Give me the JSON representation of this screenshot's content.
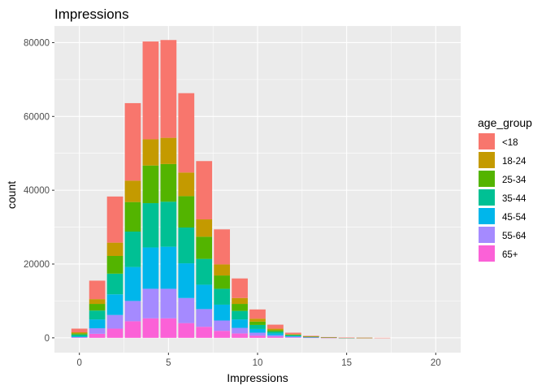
{
  "chart_data": {
    "type": "bar",
    "stacked": true,
    "title": "Impressions",
    "xlabel": "Impressions",
    "ylabel": "count",
    "xlim": [
      -1.4,
      21.4
    ],
    "ylim": [
      -4000,
      84500
    ],
    "x_ticks": [
      0,
      5,
      10,
      15,
      20
    ],
    "y_ticks": [
      0,
      20000,
      40000,
      60000,
      80000
    ],
    "x_tick_labels": [
      "0",
      "5",
      "10",
      "15",
      "20"
    ],
    "y_tick_labels": [
      "0",
      "20000",
      "40000",
      "60000",
      "80000"
    ],
    "grid": true,
    "legend": {
      "title": "age_group",
      "position": "right"
    },
    "x": [
      0,
      1,
      2,
      3,
      4,
      5,
      6,
      7,
      8,
      9,
      10,
      11,
      12,
      13,
      14,
      15,
      16,
      17,
      18,
      19,
      20
    ],
    "series": [
      {
        "name": "<18",
        "color": "#F8766D",
        "values": [
          1000,
          5000,
          12500,
          21000,
          26500,
          26500,
          21500,
          15800,
          9500,
          5300,
          2500,
          1100,
          400,
          150,
          60,
          20,
          5,
          2,
          0,
          0,
          0
        ]
      },
      {
        "name": "18-24",
        "color": "#C49A00",
        "values": [
          300,
          1300,
          3600,
          5800,
          7100,
          7100,
          6400,
          4700,
          3000,
          1600,
          800,
          380,
          140,
          50,
          20,
          5,
          2,
          0,
          0,
          0,
          0
        ]
      },
      {
        "name": "25-34",
        "color": "#53B400",
        "values": [
          300,
          1800,
          4800,
          8000,
          10200,
          10200,
          8500,
          6000,
          3600,
          1900,
          900,
          400,
          150,
          60,
          20,
          5,
          2,
          0,
          0,
          0,
          0
        ]
      },
      {
        "name": "35-44",
        "color": "#00C094",
        "values": [
          500,
          2400,
          5600,
          9600,
          12000,
          12200,
          9700,
          7000,
          4300,
          2300,
          1100,
          500,
          200,
          80,
          30,
          10,
          3,
          0,
          0,
          0,
          0
        ]
      },
      {
        "name": "45-54",
        "color": "#00B6EB",
        "values": [
          200,
          2400,
          5600,
          9200,
          11200,
          11400,
          9400,
          6600,
          4300,
          2300,
          1000,
          500,
          200,
          80,
          30,
          10,
          3,
          0,
          0,
          0,
          0
        ]
      },
      {
        "name": "55-64",
        "color": "#A58AFF",
        "values": [
          100,
          1500,
          3700,
          5500,
          8000,
          8000,
          6800,
          4800,
          2800,
          1500,
          800,
          400,
          200,
          80,
          30,
          10,
          3,
          0,
          0,
          0,
          0
        ]
      },
      {
        "name": "65+",
        "color": "#FB61D7",
        "values": [
          100,
          1100,
          2500,
          4500,
          5300,
          5300,
          4000,
          3000,
          1900,
          1200,
          600,
          300,
          110,
          50,
          20,
          10,
          0,
          0,
          0,
          0,
          0
        ]
      }
    ]
  }
}
